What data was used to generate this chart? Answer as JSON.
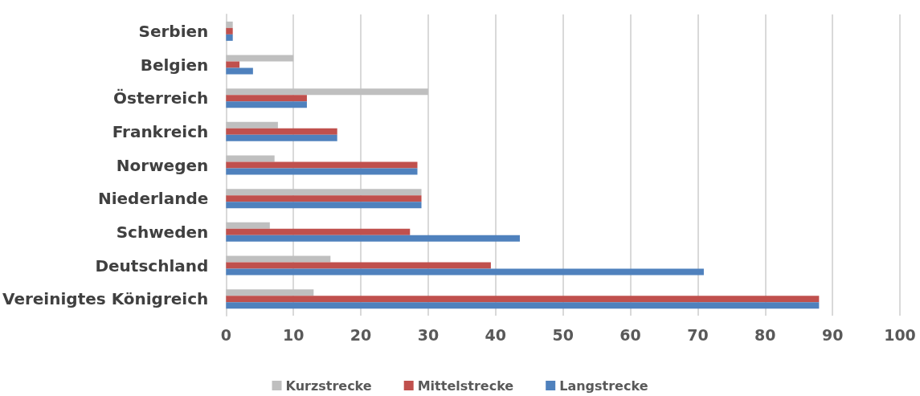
{
  "chart_data": {
    "type": "bar",
    "orientation": "horizontal",
    "categories": [
      "Serbien",
      "Belgien",
      "Österreich",
      "Frankreich",
      "Norwegen",
      "Niederlande",
      "Schweden",
      "Deutschland",
      "Vereinigtes Königreich"
    ],
    "series": [
      {
        "name": "Kurzstrecke",
        "color": "#bfbfbf",
        "values": [
          1,
          10,
          30,
          7.7,
          7.2,
          29,
          6.5,
          15.5,
          13
        ]
      },
      {
        "name": "Mittelstrecke",
        "color": "#c0504d",
        "values": [
          1,
          2,
          12,
          16.5,
          28.4,
          29,
          27.3,
          39.3,
          88
        ]
      },
      {
        "name": "Langstrecke",
        "color": "#4f81bd",
        "values": [
          1,
          4,
          12,
          16.5,
          28.4,
          29,
          43.6,
          70.9,
          88
        ]
      }
    ],
    "xlim": [
      0,
      100
    ],
    "xticks": [
      0,
      10,
      20,
      30,
      40,
      50,
      60,
      70,
      80,
      90,
      100
    ],
    "grid": "x",
    "legend": "bottom"
  }
}
